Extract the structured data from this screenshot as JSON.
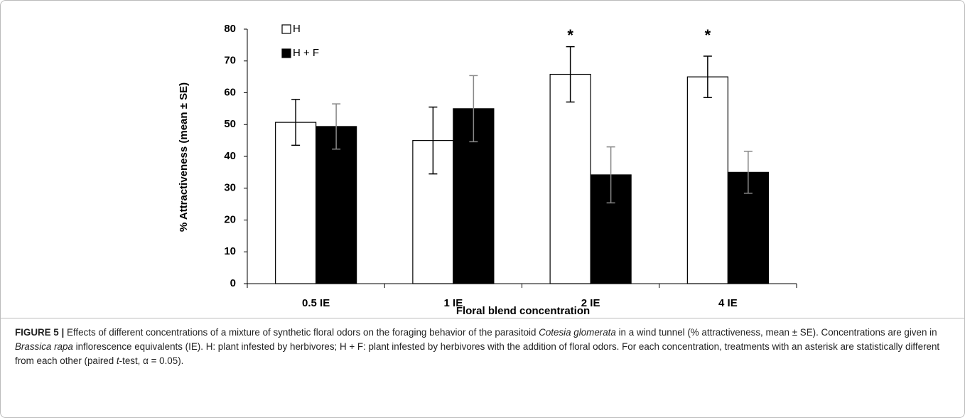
{
  "chart_data": {
    "type": "bar",
    "categories": [
      "0.5 IE",
      "1 IE",
      "2 IE",
      "4 IE"
    ],
    "series": [
      {
        "name": "H",
        "color": "#ffffff",
        "error_color": "#000000",
        "values": [
          50.7,
          45,
          65.8,
          65
        ],
        "errors": [
          7.2,
          10.5,
          8.7,
          6.5
        ]
      },
      {
        "name": "H + F",
        "color": "#000000",
        "error_color": "#888888",
        "values": [
          49.4,
          55,
          34.2,
          35
        ],
        "errors": [
          7.1,
          10.4,
          8.8,
          6.6
        ]
      }
    ],
    "ylim": [
      0,
      80
    ],
    "yticks": [
      0,
      10,
      20,
      30,
      40,
      50,
      60,
      70,
      80
    ],
    "xlabel": "Floral blend concentration",
    "ylabel": "% Attractiveness (mean ± SE)",
    "legend": "top-left",
    "annotations": [
      {
        "text": "*",
        "x": "2 IE"
      },
      {
        "text": "*",
        "x": "4 IE"
      }
    ]
  },
  "caption": {
    "label": "FIGURE 5 |",
    "segments": [
      {
        "text": " Effects of different concentrations of a mixture of synthetic floral odors on the foraging behavior of the parasitoid ",
        "italic": false
      },
      {
        "text": "Cotesia glomerata",
        "italic": true
      },
      {
        "text": " in a wind tunnel (% attractiveness, mean ± SE). Concentrations are given in ",
        "italic": false
      },
      {
        "text": "Brassica rapa",
        "italic": true
      },
      {
        "text": " inflorescence equivalents (IE). H: plant infested by herbivores; H + F: plant infested by herbivores with the addition of floral odors. For each concentration, treatments with an asterisk are statistically different from each other (paired ",
        "italic": false
      },
      {
        "text": "t",
        "italic": true
      },
      {
        "text": "-test, α = 0.05).",
        "italic": false
      }
    ]
  }
}
